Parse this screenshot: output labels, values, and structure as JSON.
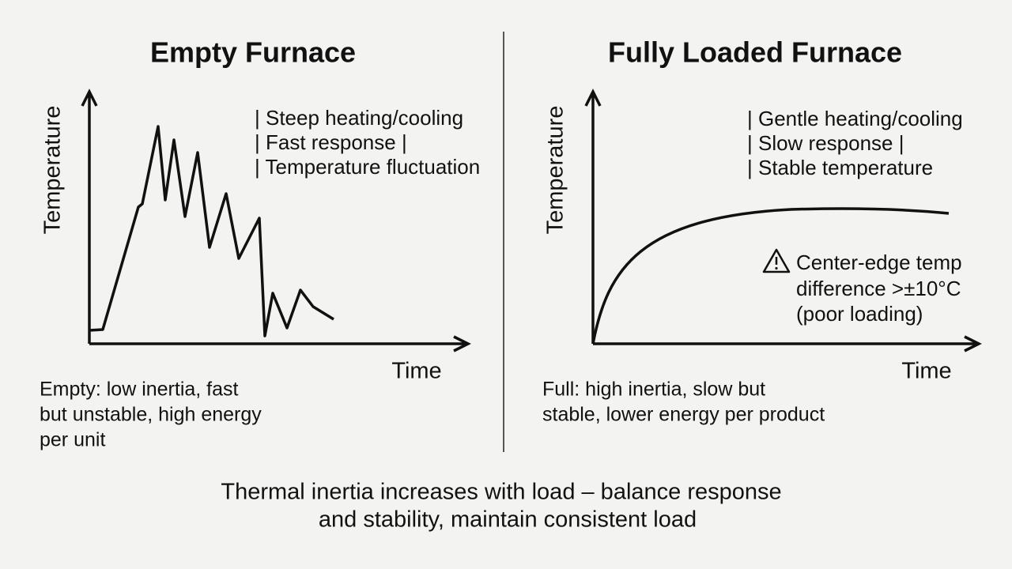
{
  "left": {
    "title": "Empty Furnace",
    "y_label": "Temperature",
    "x_label": "Time",
    "notes": [
      "| Steep heating/cooling",
      "| Fast response |",
      "| Temperature fluctuation"
    ],
    "summary": [
      "Empty: low inertia, fast",
      "but unstable, high energy",
      "per unit"
    ]
  },
  "right": {
    "title": "Fully Loaded Furnace",
    "y_label": "Temperature",
    "x_label": "Time",
    "notes": [
      "| Gentle heating/cooling",
      "| Slow response |",
      "| Stable temperature"
    ],
    "warning": [
      "Center-edge temp",
      "difference >±10°C",
      "(poor loading)"
    ],
    "summary": [
      "Full: high inertia, slow but",
      "stable, lower energy per product"
    ]
  },
  "caption": [
    "Thermal inertia increases with load – balance response",
    "and stability, maintain consistent load"
  ]
}
